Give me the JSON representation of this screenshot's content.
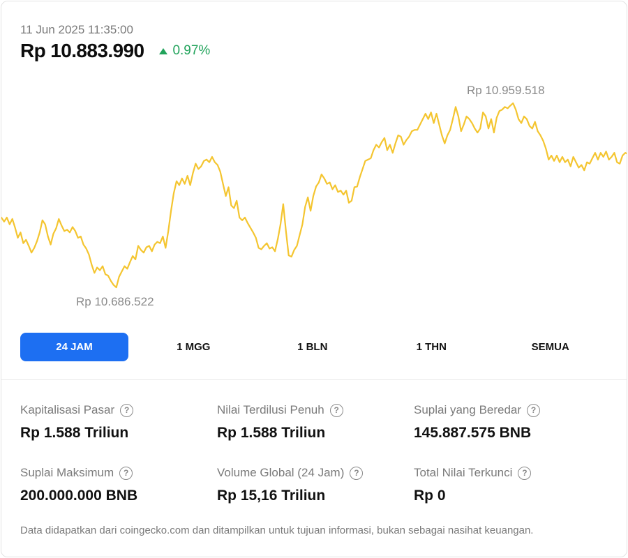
{
  "header": {
    "timestamp": "11 Jun 2025 11:35:00",
    "price": "Rp 10.883.990",
    "change": "0.97%",
    "change_direction": "up",
    "change_color": "#21a35b"
  },
  "chart_labels": {
    "high": "Rp 10.959.518",
    "low": "Rp 10.686.522"
  },
  "chart_data": {
    "type": "line",
    "line_color": "#f4c530",
    "ylim": [
      10686522,
      10959518
    ],
    "values": [
      10790000,
      10784000,
      10790000,
      10780000,
      10788000,
      10775000,
      10760000,
      10768000,
      10752000,
      10757000,
      10748000,
      10738000,
      10745000,
      10755000,
      10768000,
      10786000,
      10780000,
      10762000,
      10750000,
      10766000,
      10774000,
      10788000,
      10778000,
      10770000,
      10772000,
      10768000,
      10776000,
      10770000,
      10760000,
      10762000,
      10750000,
      10744000,
      10735000,
      10720000,
      10708000,
      10716000,
      10712000,
      10718000,
      10706000,
      10704000,
      10696000,
      10690000,
      10686522,
      10702000,
      10710000,
      10718000,
      10714000,
      10724000,
      10733000,
      10728000,
      10748000,
      10742000,
      10738000,
      10746000,
      10748000,
      10740000,
      10750000,
      10754000,
      10752000,
      10762000,
      10745000,
      10770000,
      10800000,
      10826000,
      10844000,
      10838000,
      10848000,
      10840000,
      10852000,
      10838000,
      10856000,
      10870000,
      10862000,
      10866000,
      10874000,
      10876000,
      10872000,
      10880000,
      10872000,
      10868000,
      10858000,
      10840000,
      10822000,
      10835000,
      10808000,
      10804000,
      10815000,
      10790000,
      10786000,
      10790000,
      10782000,
      10775000,
      10768000,
      10760000,
      10745000,
      10743000,
      10748000,
      10752000,
      10744000,
      10746000,
      10740000,
      10758000,
      10780000,
      10810000,
      10770000,
      10734000,
      10732000,
      10742000,
      10748000,
      10764000,
      10780000,
      10806000,
      10820000,
      10800000,
      10822000,
      10836000,
      10842000,
      10854000,
      10848000,
      10840000,
      10842000,
      10832000,
      10838000,
      10828000,
      10830000,
      10824000,
      10830000,
      10812000,
      10815000,
      10835000,
      10836000,
      10850000,
      10862000,
      10874000,
      10876000,
      10878000,
      10890000,
      10898000,
      10894000,
      10902000,
      10908000,
      10890000,
      10898000,
      10886000,
      10900000,
      10912000,
      10910000,
      10898000,
      10905000,
      10910000,
      10918000,
      10920000,
      10920000,
      10928000,
      10936000,
      10944000,
      10936000,
      10946000,
      10930000,
      10944000,
      10928000,
      10912000,
      10900000,
      10912000,
      10920000,
      10936000,
      10954000,
      10940000,
      10918000,
      10928000,
      10940000,
      10936000,
      10930000,
      10922000,
      10916000,
      10922000,
      10946000,
      10940000,
      10922000,
      10936000,
      10916000,
      10938000,
      10948000,
      10950000,
      10954000,
      10952000,
      10956000,
      10959518,
      10950000,
      10936000,
      10930000,
      10940000,
      10936000,
      10926000,
      10922000,
      10932000,
      10918000,
      10912000,
      10904000,
      10892000,
      10876000,
      10882000,
      10874000,
      10882000,
      10872000,
      10880000,
      10872000,
      10876000,
      10866000,
      10880000,
      10872000,
      10864000,
      10868000,
      10860000,
      10872000,
      10870000,
      10878000,
      10886000,
      10876000,
      10886000,
      10880000,
      10888000,
      10876000,
      10880000,
      10886000,
      10872000,
      10870000,
      10882000,
      10886000,
      10883990
    ]
  },
  "tabs": [
    {
      "label": "24 JAM",
      "active": true
    },
    {
      "label": "1 MGG",
      "active": false
    },
    {
      "label": "1 BLN",
      "active": false
    },
    {
      "label": "1 THN",
      "active": false
    },
    {
      "label": "SEMUA",
      "active": false
    }
  ],
  "stats": {
    "market_cap": {
      "label": "Kapitalisasi Pasar",
      "value": "Rp 1.588 Triliun"
    },
    "fdv": {
      "label": "Nilai Terdilusi Penuh",
      "value": "Rp 1.588 Triliun"
    },
    "circulating": {
      "label": "Suplai yang Beredar",
      "value": "145.887.575 BNB"
    },
    "max_supply": {
      "label": "Suplai Maksimum",
      "value": "200.000.000 BNB"
    },
    "volume": {
      "label": "Volume Global (24 Jam)",
      "value": "Rp 15,16 Triliun"
    },
    "tvl": {
      "label": "Total Nilai Terkunci",
      "value": "Rp 0"
    }
  },
  "help_icon": {
    "icon": "question-circle-icon",
    "glyph": "?"
  },
  "footer": {
    "disclaimer": "Data didapatkan dari coingecko.com dan ditampilkan untuk tujuan informasi, bukan sebagai nasihat keuangan."
  }
}
